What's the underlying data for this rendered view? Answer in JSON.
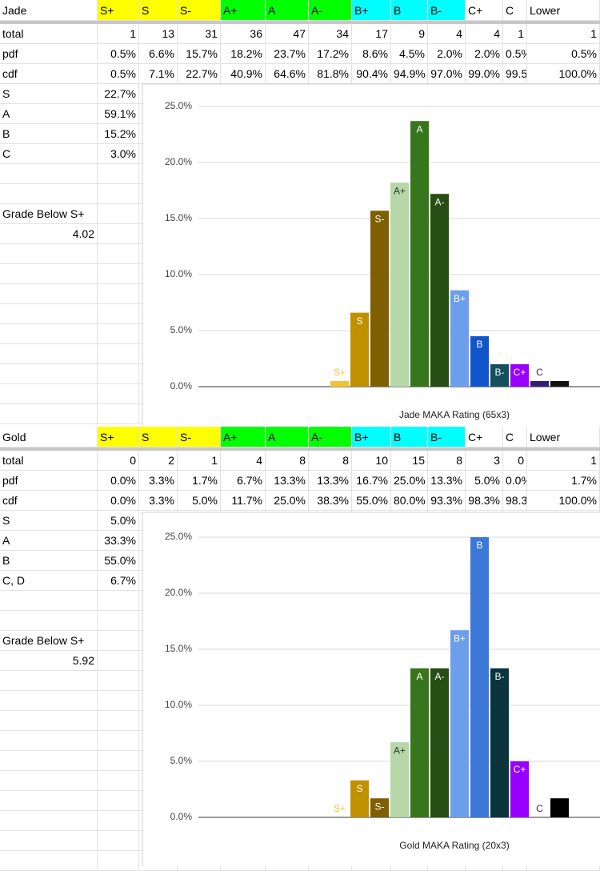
{
  "sheets": [
    {
      "header": [
        "Jade",
        "S+",
        "S",
        "S-",
        "A+",
        "A",
        "A-",
        "B+",
        "B",
        "B-",
        "C+",
        "C",
        "Lower"
      ],
      "rows": [
        [
          "total",
          "1",
          "13",
          "31",
          "36",
          "47",
          "34",
          "17",
          "9",
          "4",
          "4",
          "1",
          "1"
        ],
        [
          "pdf",
          "0.5%",
          "6.6%",
          "15.7%",
          "18.2%",
          "23.7%",
          "17.2%",
          "8.6%",
          "4.5%",
          "2.0%",
          "2.0%",
          "0.5%",
          "0.5%"
        ],
        [
          "cdf",
          "0.5%",
          "7.1%",
          "22.7%",
          "40.9%",
          "64.6%",
          "81.8%",
          "90.4%",
          "94.9%",
          "97.0%",
          "99.0%",
          "99.5%",
          "100.0%"
        ]
      ],
      "summary": [
        [
          "S",
          "22.7%"
        ],
        [
          "A",
          "59.1%"
        ],
        [
          "B",
          "15.2%"
        ],
        [
          "C",
          "3.0%"
        ]
      ],
      "below_label": "Grade Below S+",
      "below_value": "4.02"
    },
    {
      "header": [
        "Gold",
        "S+",
        "S",
        "S-",
        "A+",
        "A",
        "A-",
        "B+",
        "B",
        "B-",
        "C+",
        "C",
        "Lower"
      ],
      "rows": [
        [
          "total",
          "0",
          "2",
          "1",
          "4",
          "8",
          "8",
          "10",
          "15",
          "8",
          "3",
          "0",
          "1"
        ],
        [
          "pdf",
          "0.0%",
          "3.3%",
          "1.7%",
          "6.7%",
          "13.3%",
          "13.3%",
          "16.7%",
          "25.0%",
          "13.3%",
          "5.0%",
          "0.0%",
          "1.7%"
        ],
        [
          "cdf",
          "0.0%",
          "3.3%",
          "5.0%",
          "11.7%",
          "25.0%",
          "38.3%",
          "55.0%",
          "80.0%",
          "93.3%",
          "98.3%",
          "98.3%",
          "100.0%"
        ]
      ],
      "summary": [
        [
          "S",
          "5.0%"
        ],
        [
          "A",
          "33.3%"
        ],
        [
          "B",
          "55.0%"
        ],
        [
          "C, D",
          "6.7%"
        ]
      ],
      "below_label": "Grade Below S+",
      "below_value": "5.92"
    }
  ],
  "chart_data": [
    {
      "type": "bar",
      "x_label": "Jade MAKA Rating (65x3)",
      "categories": [
        "S+",
        "S",
        "S-",
        "A+",
        "A",
        "A-",
        "B+",
        "B",
        "B-",
        "C+",
        "C",
        null
      ],
      "values": [
        0.5,
        6.6,
        15.7,
        18.2,
        23.7,
        17.2,
        8.6,
        4.5,
        2.0,
        2.0,
        0.5,
        0.5
      ],
      "colors": [
        "#f1c232",
        "#bf9000",
        "#7f6000",
        "#b6d7a8",
        "#38761d",
        "#274e13",
        "#6d9eeb",
        "#1155cc",
        "#134f5c",
        "#9900ff",
        "#351c75",
        "#111111"
      ],
      "ylim": [
        0,
        25
      ],
      "yticks": [
        {
          "value": 0,
          "label": "0.0%"
        },
        {
          "value": 5,
          "label": "5.0%"
        },
        {
          "value": 10,
          "label": "10.0%"
        },
        {
          "value": 15,
          "label": "15.0%"
        },
        {
          "value": 20,
          "label": "20.0%"
        },
        {
          "value": 25,
          "label": "25.0%"
        }
      ],
      "grid": true
    },
    {
      "type": "bar",
      "x_label": "Gold MAKA Rating (20x3)",
      "categories": [
        "S+",
        "S",
        "S-",
        "A+",
        "A",
        "A-",
        "B+",
        "B",
        "B-",
        "C+",
        "C",
        null
      ],
      "values": [
        0.0,
        3.3,
        1.7,
        6.7,
        13.3,
        13.3,
        16.7,
        25.0,
        13.3,
        5.0,
        0.0,
        1.7
      ],
      "colors": [
        "#f1c232",
        "#bf9000",
        "#7f6000",
        "#b6d7a8",
        "#38761d",
        "#274e13",
        "#6d9eeb",
        "#3c78d8",
        "#0c343d",
        "#9900ff",
        "#351c75",
        "#000000"
      ],
      "ylim": [
        0,
        25
      ],
      "yticks": [
        {
          "value": 0,
          "label": "0.0%"
        },
        {
          "value": 5,
          "label": "5.0%"
        },
        {
          "value": 10,
          "label": "10.0%"
        },
        {
          "value": 15,
          "label": "15.0%"
        },
        {
          "value": 20,
          "label": "20.0%"
        },
        {
          "value": 25,
          "label": "25.0%"
        }
      ],
      "grid": true
    }
  ]
}
